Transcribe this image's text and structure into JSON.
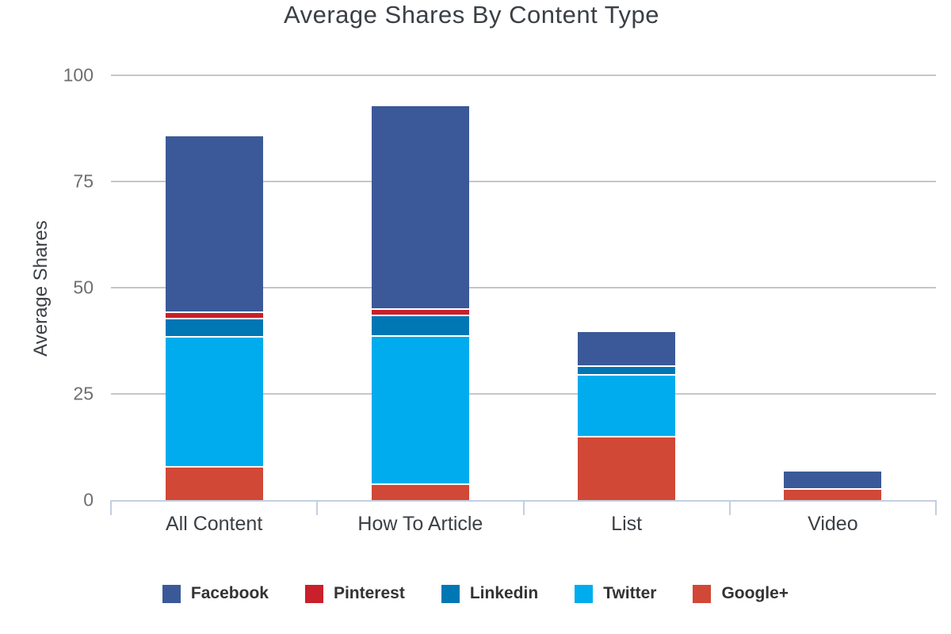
{
  "chart_data": {
    "type": "bar",
    "stacked": true,
    "title": "Average Shares By Content Type",
    "xlabel": "",
    "ylabel": "Average Shares",
    "ylim": [
      0,
      100
    ],
    "yticks": [
      0,
      25,
      50,
      75,
      100
    ],
    "grid": true,
    "legend_position": "bottom",
    "categories": [
      "All Content",
      "How To Article",
      "List",
      "Video"
    ],
    "series": [
      {
        "name": "Facebook",
        "color": "#3B5998",
        "values": [
          41.6,
          48.0,
          8.2,
          4.4
        ]
      },
      {
        "name": "Pinterest",
        "color": "#C9202B",
        "values": [
          1.4,
          1.5,
          0,
          0
        ]
      },
      {
        "name": "Linkedin",
        "color": "#0077B5",
        "values": [
          4.4,
          4.8,
          2.0,
          0
        ]
      },
      {
        "name": "Twitter",
        "color": "#00ACED",
        "values": [
          30.5,
          35.0,
          14.5,
          0
        ]
      },
      {
        "name": "Google+",
        "color": "#D14836",
        "values": [
          7.7,
          3.5,
          14.8,
          2.4
        ]
      }
    ],
    "totals": [
      85.6,
      92.8,
      39.5,
      6.8
    ]
  },
  "colors": {
    "background": "#ffffff",
    "gridline": "#c6c6c6",
    "axis_line": "#c3cfe0",
    "title_text": "#3b4046",
    "tick_text": "#6e6e6e",
    "category_text": "#3b4046",
    "legend_text": "#333333",
    "segment_border": "#ffffff"
  }
}
